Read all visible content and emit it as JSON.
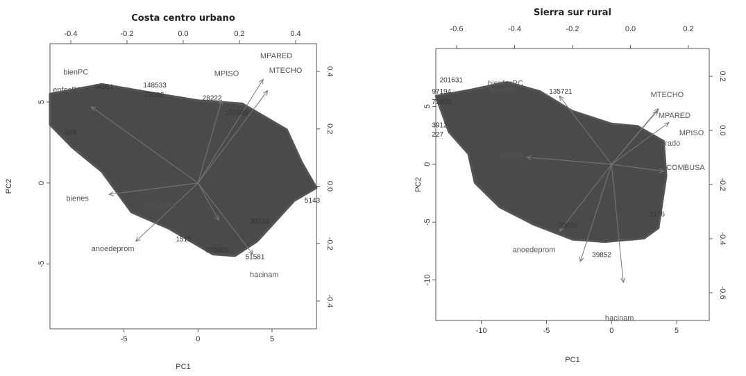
{
  "chart_data": [
    {
      "type": "scatter",
      "title": "Costa centro urbano",
      "xlabel": "PC1",
      "ylabel": "PC2",
      "xlim": [
        -10,
        8
      ],
      "ylim": [
        -9,
        8.6
      ],
      "xticks": [
        -5,
        0,
        5
      ],
      "yticks": [
        -5,
        0,
        5
      ],
      "top_ticks": [
        -0.4,
        -0.2,
        0.0,
        0.2,
        0.4
      ],
      "right_ticks": [
        0.4,
        0.2,
        0.0,
        -0.2,
        -0.4
      ],
      "cloud": [
        [
          -10,
          5.5
        ],
        [
          -6.5,
          6.1
        ],
        [
          -2,
          5.4
        ],
        [
          0,
          5.1
        ],
        [
          3,
          4.9
        ],
        [
          6,
          3.3
        ],
        [
          7,
          1.3
        ],
        [
          8,
          -0.3
        ],
        [
          6.5,
          -1.1
        ],
        [
          4,
          -3.6
        ],
        [
          2.5,
          -4.5
        ],
        [
          1,
          -4.4
        ],
        [
          -2,
          -2.8
        ],
        [
          -4.5,
          -1.8
        ],
        [
          -6.5,
          0.7
        ],
        [
          -8.5,
          2.2
        ],
        [
          -10,
          3.6
        ]
      ],
      "arrows": [
        {
          "name": "MPISO",
          "x": 1.6,
          "y": 5.1
        },
        {
          "name": "MTECHO",
          "x": 4.7,
          "y": 5.7
        },
        {
          "name": "MPARED",
          "x": 4.4,
          "y": 6.4
        },
        {
          "name": "bienes",
          "x": -6,
          "y": -0.7
        },
        {
          "name": "anoedeprom",
          "x": -4.2,
          "y": -3.6
        },
        {
          "name": "hacinam",
          "x": 3.7,
          "y": -4.4
        },
        {
          "name": "",
          "x": 1.4,
          "y": -2.3
        },
        {
          "name": "",
          "x": -7.2,
          "y": 4.7
        }
      ],
      "var_labels": [
        {
          "text": "bienPC",
          "x": -9.1,
          "y": 6.7
        },
        {
          "text": "enfocPC",
          "x": -9.8,
          "y": 5.6
        },
        {
          "text": "MPARED",
          "x": 4.2,
          "y": 7.7
        },
        {
          "text": "MTECHO",
          "x": 4.8,
          "y": 6.8
        },
        {
          "text": "MPISO",
          "x": 1.1,
          "y": 6.6
        },
        {
          "text": "bienes",
          "x": -8.9,
          "y": -1.1
        },
        {
          "text": "anoedeprom",
          "x": -7.2,
          "y": -4.2
        },
        {
          "text": "hacinam",
          "x": 3.5,
          "y": -5.8
        },
        {
          "text": "IDIOMA1",
          "x": -3.6,
          "y": -1.5
        }
      ],
      "obs_labels": [
        {
          "text": "94351",
          "x": -7,
          "y": 5.8
        },
        {
          "text": "148533",
          "x": -3.7,
          "y": 5.9
        },
        {
          "text": "73098",
          "x": -3.6,
          "y": 5.3
        },
        {
          "text": "28222",
          "x": 0.3,
          "y": 5.1
        },
        {
          "text": "161695",
          "x": 1.8,
          "y": 4.2
        },
        {
          "text": "208",
          "x": -9,
          "y": 3
        },
        {
          "text": "30123",
          "x": 3.5,
          "y": -2.5
        },
        {
          "text": "51581",
          "x": 3.2,
          "y": -4.7
        },
        {
          "text": "5143",
          "x": 7.2,
          "y": -1.2
        },
        {
          "text": "1515",
          "x": -1.5,
          "y": -3.6
        },
        {
          "text": "679858",
          "x": 0.5,
          "y": -4.3
        }
      ]
    },
    {
      "type": "scatter",
      "title": "Sierra sur rural",
      "xlabel": "PC1",
      "ylabel": "PC2",
      "xlim": [
        -13.5,
        7.5
      ],
      "ylim": [
        -13.5,
        10
      ],
      "xticks": [
        -10,
        -5,
        0,
        5
      ],
      "yticks": [
        -10,
        -5,
        0,
        5
      ],
      "top_ticks": [
        -0.6,
        -0.4,
        -0.2,
        0.0,
        0.2
      ],
      "right_ticks": [
        0.2,
        0.0,
        -0.2,
        -0.4,
        -0.6
      ],
      "cloud": [
        [
          -13.5,
          5.9
        ],
        [
          -11,
          6.4
        ],
        [
          -8,
          7.1
        ],
        [
          -5.5,
          6.3
        ],
        [
          -3,
          4.6
        ],
        [
          0,
          3.5
        ],
        [
          2,
          3.3
        ],
        [
          4,
          2
        ],
        [
          4.2,
          -1
        ],
        [
          3.6,
          -5.5
        ],
        [
          2.5,
          -6.4
        ],
        [
          -0.5,
          -6.7
        ],
        [
          -3,
          -6.5
        ],
        [
          -6,
          -5.2
        ],
        [
          -8.6,
          -3.7
        ],
        [
          -10.5,
          -1.6
        ],
        [
          -11,
          0.9
        ],
        [
          -12.5,
          2.8
        ]
      ],
      "arrows": [
        {
          "name": "MTECHO",
          "x": 3.6,
          "y": 4.8
        },
        {
          "name": "MPARED",
          "x": 3.5,
          "y": 4.6
        },
        {
          "name": "MPISO",
          "x": 4.4,
          "y": 3.6
        },
        {
          "name": "COMBUSA",
          "x": 4,
          "y": -0.6
        },
        {
          "name": "bienes",
          "x": -6.5,
          "y": 0.6
        },
        {
          "name": "anoedeprom",
          "x": -4,
          "y": -5.8
        },
        {
          "name": "hacinam",
          "x": 0.9,
          "y": -10.2
        },
        {
          "name": "",
          "x": -4,
          "y": 5.9
        },
        {
          "name": "",
          "x": -2.4,
          "y": -8.4
        }
      ],
      "var_labels": [
        {
          "text": "bienfocPC",
          "x": -9.5,
          "y": 6.8
        },
        {
          "text": "bienPC",
          "x": -9.3,
          "y": 6.2
        },
        {
          "text": "MTECHO",
          "x": 3,
          "y": 5.8
        },
        {
          "text": "MPARED",
          "x": 3.6,
          "y": 4
        },
        {
          "text": "MPISO",
          "x": 5.2,
          "y": 2.5
        },
        {
          "text": "rado",
          "x": 4.1,
          "y": 1.6
        },
        {
          "text": "COMBUSA",
          "x": 4.2,
          "y": -0.5
        },
        {
          "text": "bienes",
          "x": -8.5,
          "y": 0.6
        },
        {
          "text": "anoedeprom",
          "x": -7.6,
          "y": -7.6
        },
        {
          "text": "hacinam",
          "x": -0.5,
          "y": -13.5
        }
      ],
      "obs_labels": [
        {
          "text": "201631",
          "x": -13.2,
          "y": 7.1
        },
        {
          "text": "97194",
          "x": -13.8,
          "y": 6.1
        },
        {
          "text": "135721",
          "x": -4.8,
          "y": 6.1
        },
        {
          "text": "71950",
          "x": -13.8,
          "y": 5.2
        },
        {
          "text": "39852",
          "x": -1.5,
          "y": -8
        },
        {
          "text": "20660",
          "x": -4.1,
          "y": -5.5
        },
        {
          "text": "2176",
          "x": 2.9,
          "y": -4.5
        },
        {
          "text": "3912",
          "x": -13.8,
          "y": 3.2
        },
        {
          "text": "227",
          "x": -13.8,
          "y": 2.4
        }
      ]
    }
  ]
}
